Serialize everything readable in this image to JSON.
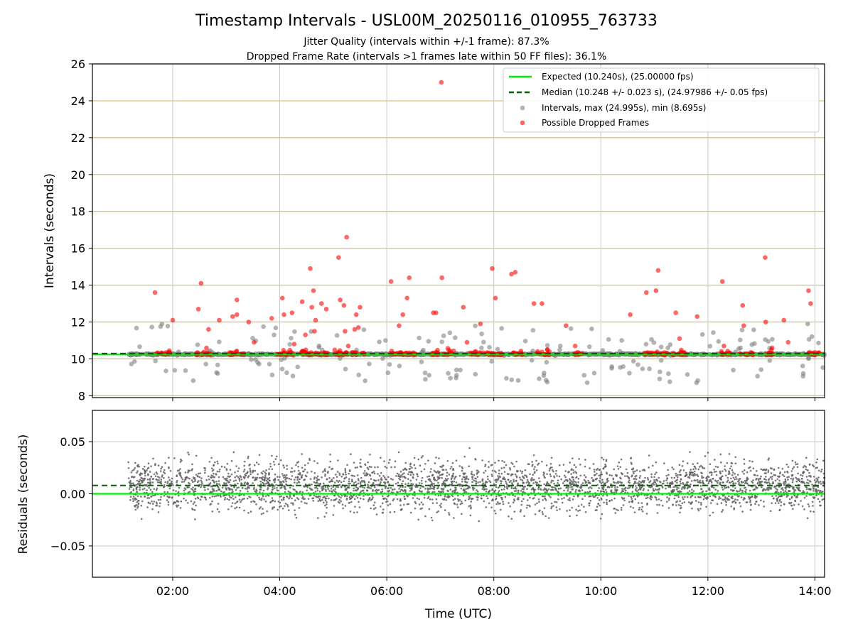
{
  "chart_data": {
    "title": "Timestamp Intervals - USL00M_20250116_010955_763733",
    "subtitles": [
      "Jitter Quality (intervals within +/-1 frame): 87.3%",
      "Dropped Frame Rate (intervals >1 frames late within 50 FF files): 36.1%"
    ],
    "xlabel": "Time (UTC)",
    "x_ticks": [
      "02:00",
      "04:00",
      "06:00",
      "08:00",
      "10:00",
      "12:00",
      "14:00"
    ],
    "x_tick_hours": [
      2,
      4,
      6,
      8,
      10,
      12,
      14
    ],
    "xlim_hours": [
      0.5,
      14.18
    ],
    "top_panel": {
      "type": "scatter",
      "ylabel": "Intervals (seconds)",
      "ylim": [
        7.9,
        26
      ],
      "y_ticks": [
        8,
        10,
        12,
        14,
        16,
        18,
        20,
        22,
        24,
        26
      ],
      "expected_value": 10.24,
      "median_value": 10.248,
      "legend": [
        "Expected (10.240s), (25.00000 fps)",
        "Median (10.248 +/- 0.023 s), (24.97986 +/- 0.05 fps)",
        "Intervals, max (24.995s), min (8.695s)",
        "Possible Dropped Frames"
      ],
      "legend_position": "top-right",
      "dropped_frames": [
        [
          1.67,
          13.6
        ],
        [
          2.0,
          12.1
        ],
        [
          2.48,
          12.7
        ],
        [
          2.53,
          14.1
        ],
        [
          2.67,
          11.6
        ],
        [
          2.87,
          12.1
        ],
        [
          3.12,
          12.3
        ],
        [
          3.2,
          12.4
        ],
        [
          3.2,
          13.2
        ],
        [
          3.42,
          12.0
        ],
        [
          3.52,
          10.9
        ],
        [
          3.85,
          12.2
        ],
        [
          4.05,
          13.3
        ],
        [
          4.08,
          12.4
        ],
        [
          4.23,
          12.5
        ],
        [
          4.27,
          10.8
        ],
        [
          4.42,
          13.1
        ],
        [
          4.48,
          11.3
        ],
        [
          4.57,
          14.9
        ],
        [
          4.6,
          12.8
        ],
        [
          4.63,
          13.7
        ],
        [
          4.65,
          11.5
        ],
        [
          4.67,
          12.1
        ],
        [
          4.78,
          13.0
        ],
        [
          4.87,
          12.7
        ],
        [
          5.1,
          15.5
        ],
        [
          5.13,
          13.2
        ],
        [
          5.2,
          12.9
        ],
        [
          5.22,
          11.5
        ],
        [
          5.25,
          16.6
        ],
        [
          5.28,
          10.7
        ],
        [
          5.4,
          11.6
        ],
        [
          5.43,
          12.4
        ],
        [
          5.47,
          11.7
        ],
        [
          5.5,
          12.8
        ],
        [
          6.08,
          14.2
        ],
        [
          6.23,
          11.8
        ],
        [
          6.3,
          12.4
        ],
        [
          6.38,
          13.3
        ],
        [
          6.42,
          14.4
        ],
        [
          6.87,
          12.5
        ],
        [
          6.92,
          12.5
        ],
        [
          7.02,
          25.0
        ],
        [
          7.03,
          14.4
        ],
        [
          7.43,
          12.8
        ],
        [
          7.5,
          10.9
        ],
        [
          7.75,
          11.9
        ],
        [
          7.97,
          14.9
        ],
        [
          8.03,
          13.3
        ],
        [
          8.33,
          14.6
        ],
        [
          8.4,
          14.7
        ],
        [
          8.75,
          13.0
        ],
        [
          8.9,
          13.0
        ],
        [
          9.35,
          11.8
        ],
        [
          9.52,
          10.7
        ],
        [
          10.55,
          12.4
        ],
        [
          10.85,
          13.6
        ],
        [
          11.03,
          13.7
        ],
        [
          11.07,
          14.8
        ],
        [
          11.4,
          12.5
        ],
        [
          11.47,
          11.1
        ],
        [
          11.8,
          12.3
        ],
        [
          12.27,
          14.2
        ],
        [
          12.3,
          10.7
        ],
        [
          12.65,
          12.9
        ],
        [
          12.67,
          11.8
        ],
        [
          13.07,
          15.5
        ],
        [
          13.08,
          12.0
        ],
        [
          13.2,
          10.6
        ],
        [
          13.42,
          12.1
        ],
        [
          13.5,
          10.9
        ],
        [
          13.88,
          13.7
        ],
        [
          13.92,
          13.0
        ]
      ],
      "dropped_cluster_ranges": [
        [
          1.7,
          1.95
        ],
        [
          2.45,
          2.7
        ],
        [
          3.05,
          3.35
        ],
        [
          3.95,
          4.25
        ],
        [
          4.4,
          4.95
        ],
        [
          5.0,
          5.6
        ],
        [
          6.05,
          6.55
        ],
        [
          6.85,
          7.25
        ],
        [
          7.55,
          8.15
        ],
        [
          8.35,
          8.55
        ],
        [
          8.8,
          9.05
        ],
        [
          9.5,
          9.65
        ],
        [
          10.8,
          11.25
        ],
        [
          11.35,
          11.6
        ],
        [
          12.25,
          12.45
        ],
        [
          12.6,
          12.85
        ],
        [
          13.05,
          13.25
        ],
        [
          13.85,
          14.1
        ]
      ]
    },
    "bottom_panel": {
      "type": "scatter",
      "ylabel": "Residuals (seconds)",
      "ylim": [
        -0.08,
        0.08
      ],
      "y_ticks": [
        -0.05,
        0.0,
        0.05
      ],
      "y_tick_labels": [
        "−0.05",
        "0.00",
        "0.05"
      ],
      "expected_residual": 0.0,
      "median_residual": 0.008
    },
    "colors": {
      "expected": "#00ee00",
      "median": "#006400",
      "intervals": "#808080",
      "dropped": "#ff0000",
      "hgrid_top": "#d4bc6a",
      "grid": "#c8c8c8"
    }
  }
}
